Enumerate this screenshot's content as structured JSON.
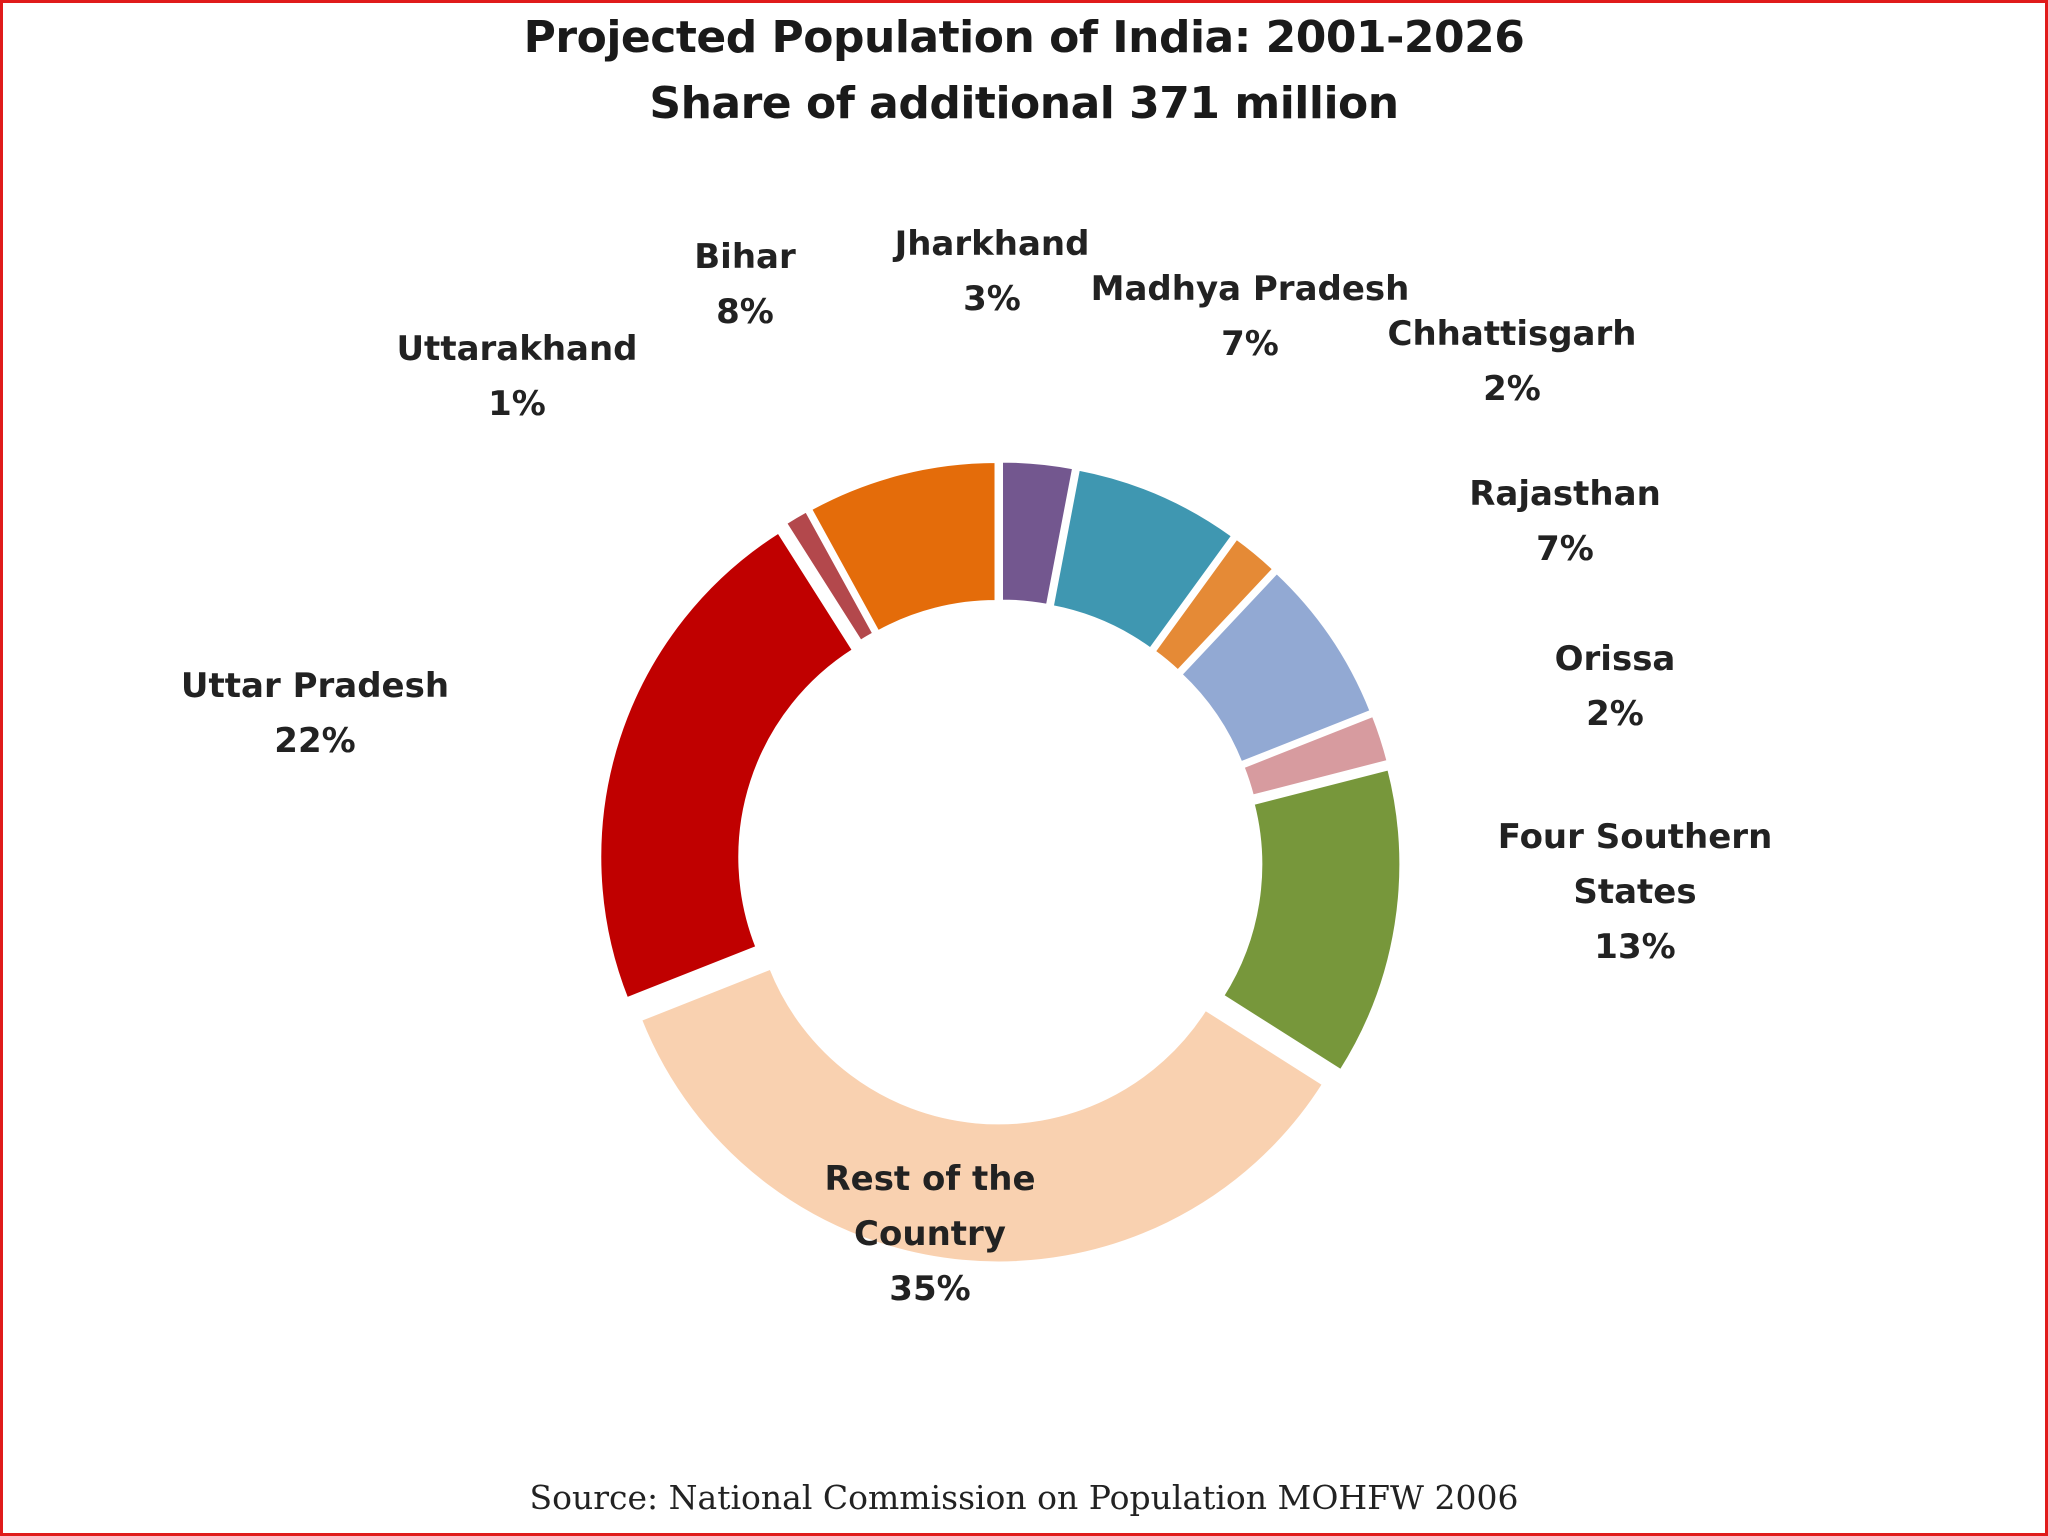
{
  "chart_data": {
    "type": "pie",
    "title": "Projected Population of India: 2001-2026",
    "subtitle": "Share of additional 371 million",
    "source": "Source: National Commission on Population MOHFW 2006",
    "unit": "%",
    "slices": [
      {
        "lines": [
          "Jharkhand"
        ],
        "pct": "3%",
        "value": 3,
        "color": "#73578f"
      },
      {
        "lines": [
          "Madhya Pradesh"
        ],
        "pct": "7%",
        "value": 7,
        "color": "#3f97b1"
      },
      {
        "lines": [
          "Chhattisgarh"
        ],
        "pct": "2%",
        "value": 2,
        "color": "#e58a36"
      },
      {
        "lines": [
          "Rajasthan"
        ],
        "pct": "7%",
        "value": 7,
        "color": "#92a9d3"
      },
      {
        "lines": [
          "Orissa"
        ],
        "pct": "2%",
        "value": 2,
        "color": "#d79b9f"
      },
      {
        "lines": [
          "Four Southern",
          "States"
        ],
        "pct": "13%",
        "value": 13,
        "color": "#77973b"
      },
      {
        "lines": [
          "Rest of the",
          "Country"
        ],
        "pct": "35%",
        "value": 35,
        "color": "#f9d1b0"
      },
      {
        "lines": [
          "Uttar Pradesh"
        ],
        "pct": "22%",
        "value": 22,
        "color": "#c00000"
      },
      {
        "lines": [
          "Uttarakhand"
        ],
        "pct": "1%",
        "value": 1,
        "color": "#b3484c"
      },
      {
        "lines": [
          "Bihar"
        ],
        "pct": "8%",
        "value": 8,
        "color": "#e46c0a"
      }
    ]
  }
}
